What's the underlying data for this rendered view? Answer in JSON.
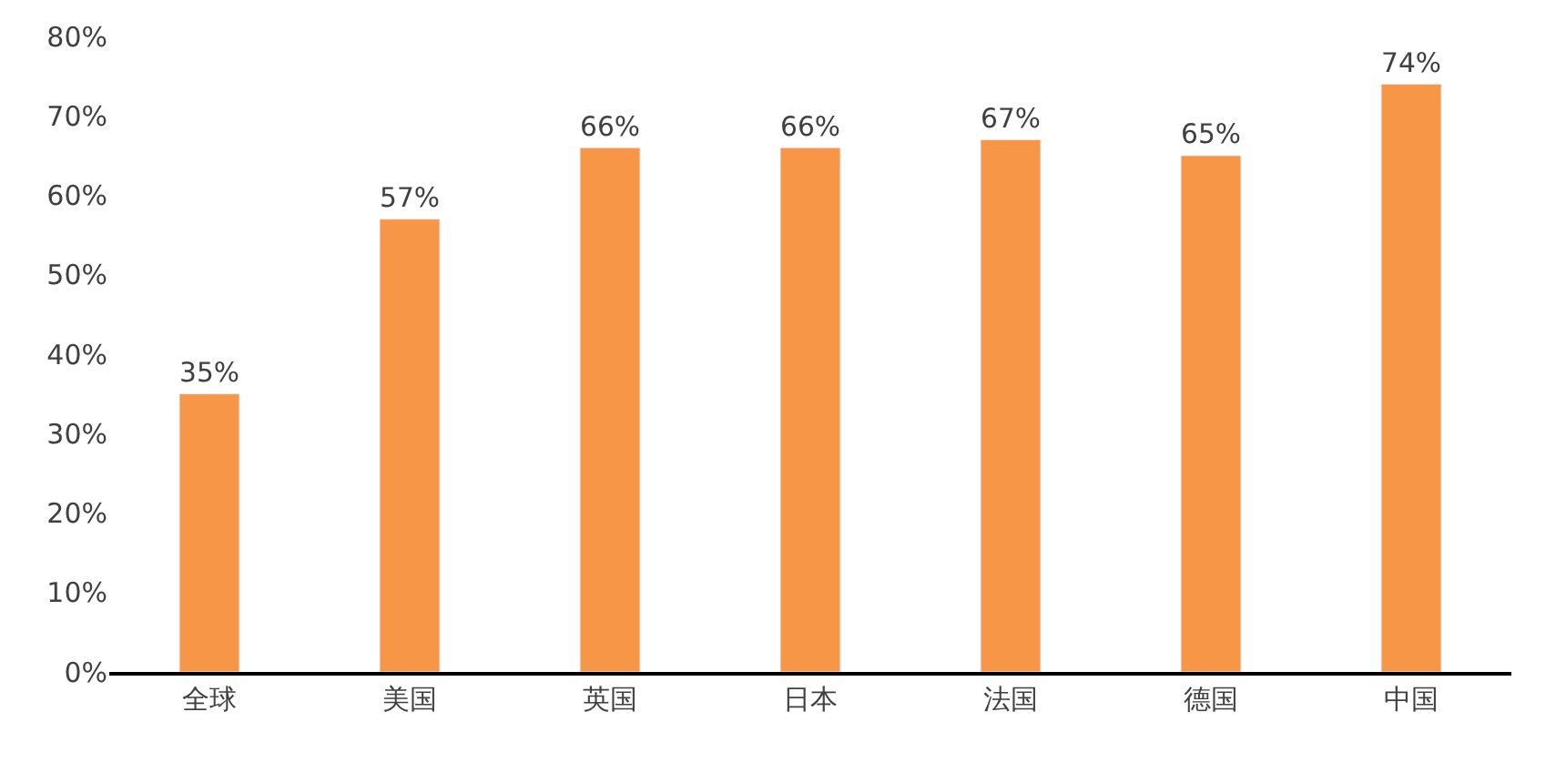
{
  "chart_data": {
    "type": "bar",
    "categories": [
      "全球",
      "美国",
      "英国",
      "日本",
      "法国",
      "德国",
      "中国"
    ],
    "values": [
      35,
      57,
      66,
      66,
      67,
      65,
      74
    ],
    "value_labels": [
      "35%",
      "57%",
      "66%",
      "66%",
      "67%",
      "65%",
      "74%"
    ],
    "color": "#f79646",
    "ylim": [
      0,
      80
    ],
    "yticks": [
      {
        "value": 0,
        "label": "0%"
      },
      {
        "value": 10,
        "label": "10%"
      },
      {
        "value": 20,
        "label": "20%"
      },
      {
        "value": 30,
        "label": "30%"
      },
      {
        "value": 40,
        "label": "40%"
      },
      {
        "value": 50,
        "label": "50%"
      },
      {
        "value": 60,
        "label": "60%"
      },
      {
        "value": 70,
        "label": "70%"
      },
      {
        "value": 80,
        "label": "80%"
      }
    ],
    "grid": false,
    "legend": false
  }
}
